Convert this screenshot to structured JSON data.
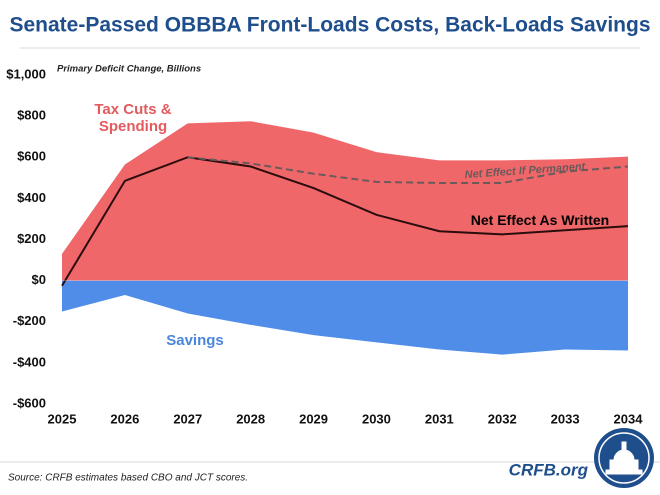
{
  "chart_data": {
    "type": "area",
    "title": "Senate-Passed OBBBA Front-Loads Costs, Back-Loads Savings",
    "subtitle": "Primary Deficit Change, Billions",
    "source": "Source: CRFB estimates based CBO and JCT scores.",
    "brand": "CRFB.org",
    "categories": [
      "2025",
      "2026",
      "2027",
      "2028",
      "2029",
      "2030",
      "2031",
      "2032",
      "2033",
      "2034"
    ],
    "series": [
      {
        "name": "Tax Cuts & Spending",
        "kind": "area",
        "color": "#f0676a",
        "label_color": "#e35b5e",
        "values": [
          130,
          565,
          765,
          775,
          720,
          625,
          585,
          585,
          590,
          603
        ]
      },
      {
        "name": "Savings",
        "kind": "area",
        "color": "#4f8de8",
        "label_color": "#4a86db",
        "values": [
          -150,
          -70,
          -160,
          -215,
          -265,
          -300,
          -335,
          -360,
          -335,
          -340
        ]
      },
      {
        "name": "Net Effect As Written",
        "kind": "line",
        "color": "#2b0d0d",
        "label_color": "#000000",
        "values": [
          -25,
          485,
          600,
          555,
          450,
          320,
          240,
          225,
          245,
          265
        ]
      },
      {
        "name": "Net Effect If Permanent",
        "kind": "line",
        "dashed": true,
        "color": "#6b5a5a",
        "label_color": "#6b5a5a",
        "values": [
          null,
          null,
          600,
          570,
          520,
          480,
          475,
          475,
          530,
          555
        ]
      }
    ],
    "ylim": [
      -600,
      1000
    ],
    "yticks": [
      {
        "value": 1000,
        "label": "$1,000"
      },
      {
        "value": 800,
        "label": "$800"
      },
      {
        "value": 600,
        "label": "$600"
      },
      {
        "value": 400,
        "label": "$400"
      },
      {
        "value": 200,
        "label": "$200"
      },
      {
        "value": 0,
        "label": "$0"
      },
      {
        "value": -200,
        "label": "-$200"
      },
      {
        "value": -400,
        "label": "-$400"
      },
      {
        "value": -600,
        "label": "-$600"
      }
    ],
    "grid": false
  }
}
